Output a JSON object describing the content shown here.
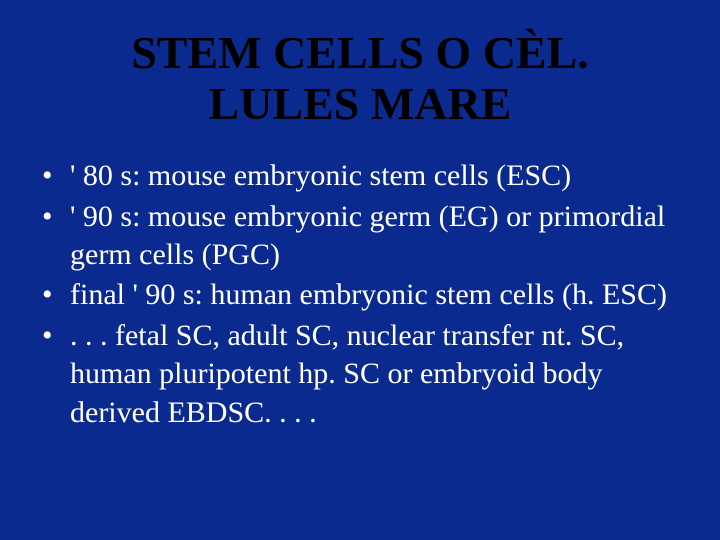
{
  "slide": {
    "background_color": "#0b2a8f",
    "title": {
      "text": "STEM CELLS O CÈL. LULES MARE",
      "color": "#000000",
      "font_size_pt": 34,
      "font_weight": "bold",
      "align": "center"
    },
    "bullets": {
      "marker": "•",
      "text_color": "#ffffff",
      "font_size_pt": 22,
      "items": [
        "' 80 s: mouse embryonic stem cells (ESC)",
        "' 90 s: mouse embryonic germ (EG) or primordial germ cells (PGC)",
        "final ' 90 s: human embryonic stem cells (h. ESC)",
        ". . . fetal SC, adult SC, nuclear transfer nt. SC, human pluripotent hp. SC or embryoid body derived EBDSC. . . ."
      ]
    }
  }
}
